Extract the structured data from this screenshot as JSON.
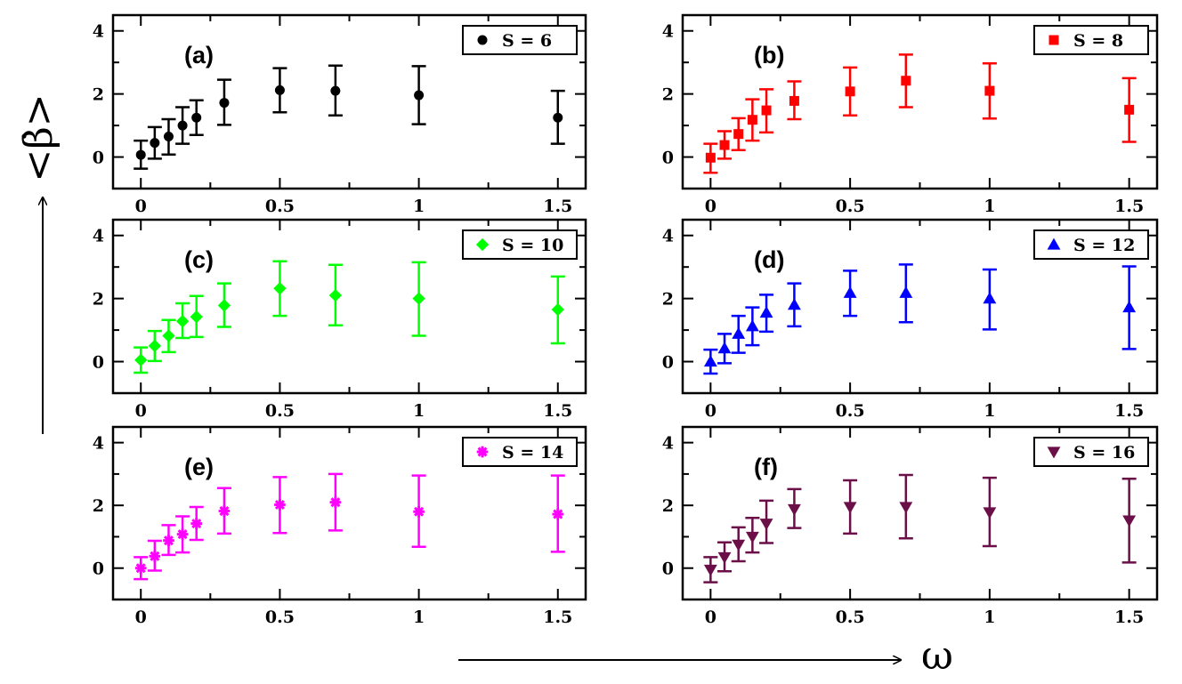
{
  "figure": {
    "x_axis_title": "ω",
    "y_axis_title": "<β̇>"
  },
  "chart_data": [
    {
      "type": "scatter",
      "panel_label": "(a)",
      "legend": "S = 6",
      "color": "#000000",
      "marker": "circle",
      "x": [
        0,
        0.05,
        0.1,
        0.15,
        0.2,
        0.3,
        0.5,
        0.7,
        1,
        1.5
      ],
      "y": [
        0.07,
        0.45,
        0.65,
        1.0,
        1.25,
        1.72,
        2.12,
        2.1,
        1.96,
        1.25
      ],
      "y_low": [
        -0.37,
        -0.05,
        0.08,
        0.42,
        0.7,
        1.02,
        1.42,
        1.32,
        1.04,
        0.42
      ],
      "y_high": [
        0.52,
        0.95,
        1.2,
        1.58,
        1.8,
        2.45,
        2.82,
        2.9,
        2.88,
        2.1
      ],
      "xlim": [
        -0.1,
        1.6
      ],
      "ylim": [
        -1,
        4.5
      ],
      "xticks": [
        0,
        0.5,
        1,
        1.5
      ],
      "xtick_labels": [
        "0",
        "0.5",
        "1",
        "1.5"
      ],
      "yticks": [
        0,
        2,
        4
      ],
      "ytick_labels": [
        "0",
        "2",
        "4"
      ],
      "legend_position": "top-right"
    },
    {
      "type": "scatter",
      "panel_label": "(b)",
      "legend": "S = 8",
      "color": "#ff0000",
      "marker": "square",
      "x": [
        0,
        0.05,
        0.1,
        0.15,
        0.2,
        0.3,
        0.5,
        0.7,
        1,
        1.5
      ],
      "y": [
        -0.02,
        0.38,
        0.73,
        1.18,
        1.48,
        1.78,
        2.08,
        2.42,
        2.1,
        1.5
      ],
      "y_low": [
        -0.5,
        -0.05,
        0.22,
        0.52,
        0.78,
        1.2,
        1.32,
        1.58,
        1.22,
        0.48
      ],
      "y_high": [
        0.42,
        0.82,
        1.23,
        1.83,
        2.15,
        2.4,
        2.84,
        3.25,
        2.97,
        2.5
      ],
      "xlim": [
        -0.1,
        1.6
      ],
      "ylim": [
        -1,
        4.5
      ],
      "xticks": [
        0,
        0.5,
        1,
        1.5
      ],
      "xtick_labels": [
        "0",
        "0.5",
        "1",
        "1.5"
      ],
      "yticks": [
        0,
        2,
        4
      ],
      "ytick_labels": [
        "0",
        "2",
        "4"
      ],
      "legend_position": "top-right"
    },
    {
      "type": "scatter",
      "panel_label": "(c)",
      "legend": "S = 10",
      "color": "#00ff00",
      "marker": "diamond",
      "x": [
        0,
        0.05,
        0.1,
        0.15,
        0.2,
        0.3,
        0.5,
        0.7,
        1,
        1.5
      ],
      "y": [
        0.05,
        0.5,
        0.82,
        1.28,
        1.42,
        1.78,
        2.32,
        2.1,
        2.0,
        1.65
      ],
      "y_low": [
        -0.35,
        0.02,
        0.3,
        0.75,
        0.78,
        1.1,
        1.45,
        1.15,
        0.82,
        0.58
      ],
      "y_high": [
        0.45,
        0.97,
        1.32,
        1.85,
        2.08,
        2.48,
        3.18,
        3.07,
        3.15,
        2.7
      ],
      "xlim": [
        -0.1,
        1.6
      ],
      "ylim": [
        -1,
        4.5
      ],
      "xticks": [
        0,
        0.5,
        1,
        1.5
      ],
      "xtick_labels": [
        "0",
        "0.5",
        "1",
        "1.5"
      ],
      "yticks": [
        0,
        2,
        4
      ],
      "ytick_labels": [
        "0",
        "2",
        "4"
      ],
      "legend_position": "top-right"
    },
    {
      "type": "scatter",
      "panel_label": "(d)",
      "legend": "S = 12",
      "color": "#0000ff",
      "marker": "triangle-up",
      "x": [
        0,
        0.05,
        0.1,
        0.15,
        0.2,
        0.3,
        0.5,
        0.7,
        1,
        1.5
      ],
      "y": [
        0.0,
        0.42,
        0.88,
        1.12,
        1.55,
        1.8,
        2.18,
        2.18,
        2.0,
        1.72
      ],
      "y_low": [
        -0.38,
        -0.05,
        0.28,
        0.52,
        0.95,
        1.12,
        1.45,
        1.25,
        1.02,
        0.4
      ],
      "y_high": [
        0.38,
        0.88,
        1.45,
        1.72,
        2.12,
        2.48,
        2.88,
        3.08,
        2.92,
        3.02
      ],
      "xlim": [
        -0.1,
        1.6
      ],
      "ylim": [
        -1,
        4.5
      ],
      "xticks": [
        0,
        0.5,
        1,
        1.5
      ],
      "xtick_labels": [
        "0",
        "0.5",
        "1",
        "1.5"
      ],
      "yticks": [
        0,
        2,
        4
      ],
      "ytick_labels": [
        "0",
        "2",
        "4"
      ],
      "legend_position": "top-right"
    },
    {
      "type": "scatter",
      "panel_label": "(e)",
      "legend": "S = 14",
      "color": "#ff00ff",
      "marker": "asterisk",
      "x": [
        0,
        0.05,
        0.1,
        0.15,
        0.2,
        0.3,
        0.5,
        0.7,
        1,
        1.5
      ],
      "y": [
        0.0,
        0.38,
        0.88,
        1.08,
        1.42,
        1.82,
        2.02,
        2.1,
        1.8,
        1.72
      ],
      "y_low": [
        -0.35,
        -0.08,
        0.42,
        0.5,
        0.9,
        1.1,
        1.12,
        1.2,
        0.68,
        0.52
      ],
      "y_high": [
        0.35,
        0.87,
        1.37,
        1.65,
        1.95,
        2.55,
        2.9,
        3.0,
        2.95,
        2.95
      ],
      "xlim": [
        -0.1,
        1.6
      ],
      "ylim": [
        -1,
        4.5
      ],
      "xticks": [
        0,
        0.5,
        1,
        1.5
      ],
      "xtick_labels": [
        "0",
        "0.5",
        "1",
        "1.5"
      ],
      "yticks": [
        0,
        2,
        4
      ],
      "ytick_labels": [
        "0",
        "2",
        "4"
      ],
      "legend_position": "top-right"
    },
    {
      "type": "scatter",
      "panel_label": "(f)",
      "legend": "S = 16",
      "color": "#6b0f48",
      "marker": "triangle-down",
      "x": [
        0,
        0.05,
        0.1,
        0.15,
        0.2,
        0.3,
        0.5,
        0.7,
        1,
        1.5
      ],
      "y": [
        -0.05,
        0.35,
        0.75,
        1.0,
        1.42,
        1.88,
        1.95,
        1.95,
        1.78,
        1.52
      ],
      "y_low": [
        -0.45,
        -0.1,
        0.22,
        0.5,
        0.8,
        1.28,
        1.1,
        0.95,
        0.7,
        0.18
      ],
      "y_high": [
        0.35,
        0.82,
        1.3,
        1.6,
        2.15,
        2.52,
        2.8,
        2.97,
        2.88,
        2.85
      ],
      "xlim": [
        -0.1,
        1.6
      ],
      "ylim": [
        -1,
        4.5
      ],
      "xticks": [
        0,
        0.5,
        1,
        1.5
      ],
      "xtick_labels": [
        "0",
        "0.5",
        "1",
        "1.5"
      ],
      "yticks": [
        0,
        2,
        4
      ],
      "ytick_labels": [
        "0",
        "2",
        "4"
      ],
      "legend_position": "top-right"
    }
  ]
}
